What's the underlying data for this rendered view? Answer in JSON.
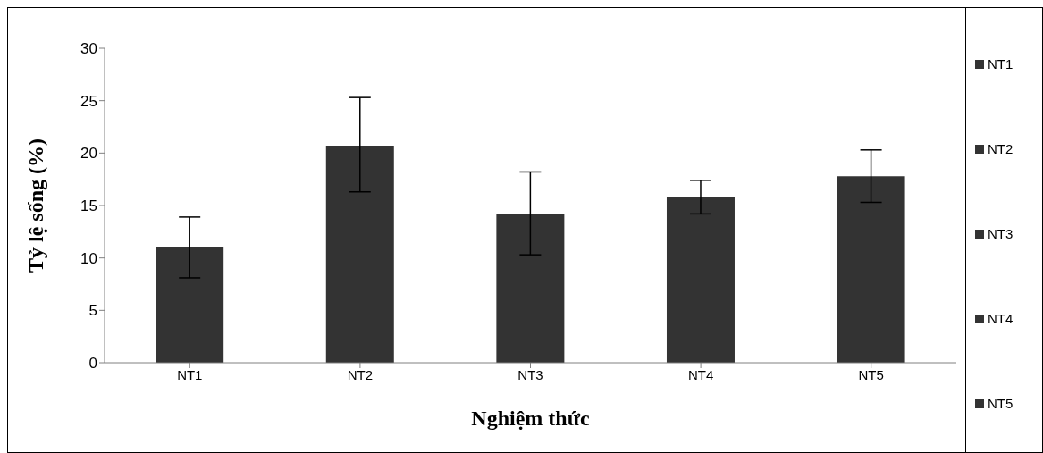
{
  "chart_data": {
    "type": "bar",
    "xlabel": "Nghiệm thức",
    "ylabel": "Tỷ lệ sống (%)",
    "categories": [
      "NT1",
      "NT2",
      "NT3",
      "NT4",
      "NT5"
    ],
    "series": [
      {
        "name": "NT1",
        "color": "#333333",
        "values": [
          11.0,
          null,
          null,
          null,
          null
        ],
        "errors": [
          [
            8.1,
            13.9
          ],
          null,
          null,
          null,
          null
        ]
      },
      {
        "name": "NT2",
        "color": "#333333",
        "values": [
          null,
          20.7,
          null,
          null,
          null
        ],
        "errors": [
          null,
          [
            16.3,
            25.3
          ],
          null,
          null,
          null
        ]
      },
      {
        "name": "NT3",
        "color": "#333333",
        "values": [
          null,
          null,
          14.2,
          null,
          null
        ],
        "errors": [
          null,
          null,
          [
            10.3,
            18.2
          ],
          null,
          null
        ]
      },
      {
        "name": "NT4",
        "color": "#333333",
        "values": [
          null,
          null,
          null,
          15.8,
          null
        ],
        "errors": [
          null,
          null,
          null,
          [
            14.2,
            17.4
          ],
          null
        ]
      },
      {
        "name": "NT5",
        "color": "#333333",
        "values": [
          null,
          null,
          null,
          null,
          17.8
        ],
        "errors": [
          null,
          null,
          null,
          null,
          [
            15.3,
            20.3
          ]
        ]
      }
    ],
    "stacked": true,
    "ylim": [
      0,
      30
    ],
    "yticks": [
      0,
      5,
      10,
      15,
      20,
      25,
      30
    ],
    "grid": false,
    "legend": "right"
  }
}
